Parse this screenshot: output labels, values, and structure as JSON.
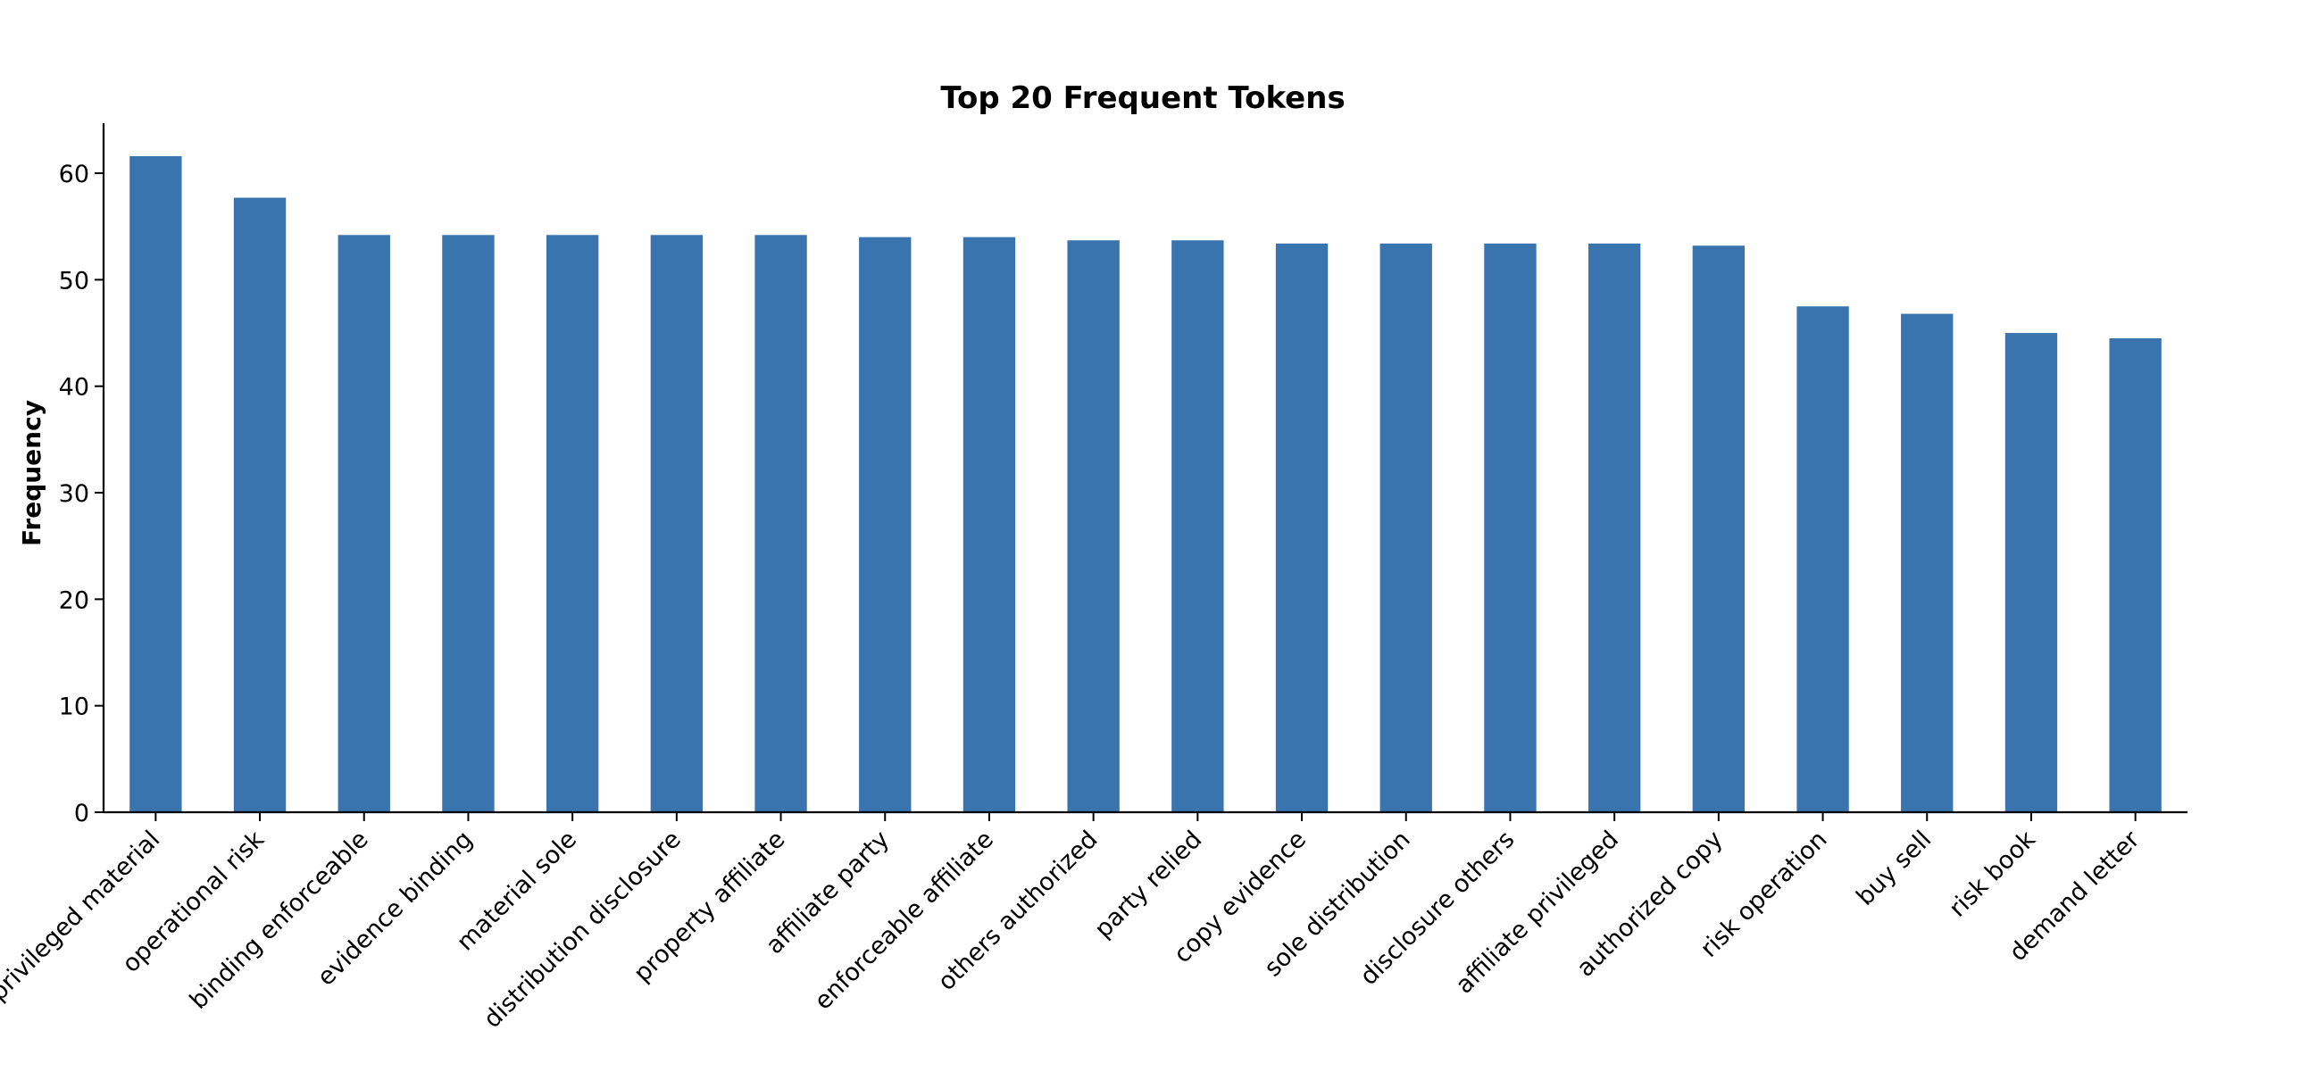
{
  "chart_data": {
    "type": "bar",
    "title": "Top 20 Frequent Tokens",
    "xlabel": "",
    "ylabel": "Frequency",
    "ylim": [
      0,
      64.7
    ],
    "yticks": [
      0,
      10,
      20,
      30,
      40,
      50,
      60
    ],
    "grid": false,
    "legend": "none",
    "bar_color": "#3a74af",
    "categories": [
      "privileged material",
      "operational risk",
      "binding enforceable",
      "evidence binding",
      "material sole",
      "distribution disclosure",
      "property affiliate",
      "affiliate party",
      "enforceable affiliate",
      "others authorized",
      "party relied",
      "copy evidence",
      "sole distribution",
      "disclosure others",
      "affiliate privileged",
      "authorized copy",
      "risk operation",
      "buy sell",
      "risk book",
      "demand letter"
    ],
    "values": [
      61.6,
      57.7,
      54.2,
      54.2,
      54.2,
      54.2,
      54.2,
      54.0,
      54.0,
      53.7,
      53.7,
      53.4,
      53.4,
      53.4,
      53.4,
      53.2,
      47.5,
      46.8,
      45.0,
      44.5
    ]
  }
}
